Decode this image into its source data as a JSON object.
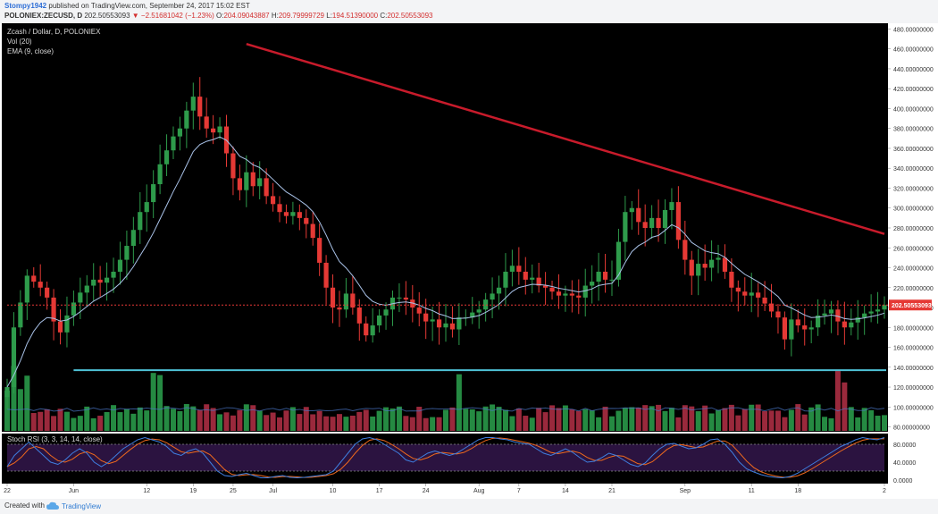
{
  "header": {
    "user": "Stompy1942",
    "published": "published on TradingView.com, September 24, 2017 15:02 EST",
    "symbol": "POLONIEX:ZECUSD, D",
    "last": "202.50553093",
    "change": "−2.51681042 (−1.23%)",
    "o_label": "O:",
    "o_value": "204.09043887",
    "h_label": "H:",
    "h_value": "209.79999729",
    "l_label": "L:",
    "l_value": "194.51390000",
    "c_label": "C:",
    "c_value": "202.50553093"
  },
  "legend": {
    "title": "Zcash / Dollar, D, POLONIEX",
    "vol": "Vol (20)",
    "ema": "EMA (9, close)",
    "stoch": "Stoch RSI (3, 3, 14, 14, close)"
  },
  "footer": {
    "created": "Created with",
    "brand": "TradingView"
  },
  "colors": {
    "background": "#000000",
    "up": "#26a69a",
    "up_candle": "#2e9b4b",
    "down": "#e53935",
    "ema": "#a9c2e8",
    "trendline": "#c81b2b",
    "support": "#4fc3d7",
    "price_line": "#e53935",
    "stoch_k": "#3f7fe0",
    "stoch_d": "#f06a1d",
    "stoch_band": "#3a1a55"
  },
  "chart_data": {
    "type": "candlestick",
    "price_axis": {
      "ticks": [
        "480.00000000",
        "460.00000000",
        "440.00000000",
        "420.00000000",
        "400.00000000",
        "380.00000000",
        "360.00000000",
        "340.00000000",
        "320.00000000",
        "300.00000000",
        "280.00000000",
        "260.00000000",
        "240.00000000",
        "220.00000000",
        "200.00000000",
        "180.00000000",
        "160.00000000",
        "140.00000000",
        "120.00000000",
        "100.00000000",
        "80.00000000"
      ],
      "ylim": [
        76,
        484
      ],
      "last_price_label": "202.50553093",
      "last_price": 202.5
    },
    "x_axis": {
      "ticks": [
        {
          "label": "22",
          "day": 0
        },
        {
          "label": "Jun",
          "day": 10
        },
        {
          "label": "12",
          "day": 21
        },
        {
          "label": "19",
          "day": 28
        },
        {
          "label": "25",
          "day": 34
        },
        {
          "label": "Jul",
          "day": 40
        },
        {
          "label": "10",
          "day": 49
        },
        {
          "label": "17",
          "day": 56
        },
        {
          "label": "24",
          "day": 63
        },
        {
          "label": "Aug",
          "day": 71
        },
        {
          "label": "7",
          "day": 77
        },
        {
          "label": "14",
          "day": 84
        },
        {
          "label": "21",
          "day": 91
        },
        {
          "label": "Sep",
          "day": 102
        },
        {
          "label": "11",
          "day": 112
        },
        {
          "label": "18",
          "day": 119
        },
        {
          "label": "2",
          "day": 133
        }
      ]
    },
    "stoch_axis": {
      "ticks": [
        "80.0000",
        "40.0000",
        "0.0000"
      ],
      "ylim": [
        0,
        100
      ],
      "bands": [
        20,
        80
      ]
    },
    "close_prices": [
      120,
      180,
      205,
      232,
      226,
      220,
      210,
      186,
      175,
      192,
      205,
      215,
      222,
      228,
      225,
      230,
      236,
      248,
      262,
      278,
      296,
      306,
      324,
      344,
      358,
      372,
      380,
      398,
      412,
      392,
      380,
      376,
      382,
      355,
      330,
      318,
      336,
      322,
      330,
      312,
      304,
      296,
      292,
      296,
      290,
      284,
      270,
      245,
      220,
      200,
      198,
      214,
      200,
      184,
      172,
      182,
      192,
      198,
      210,
      210,
      208,
      200,
      194,
      186,
      188,
      180,
      184,
      178,
      190,
      190,
      195,
      198,
      208,
      214,
      220,
      236,
      242,
      236,
      228,
      230,
      222,
      220,
      216,
      212,
      214,
      212,
      210,
      222,
      226,
      236,
      228,
      228,
      266,
      296,
      300,
      286,
      280,
      290,
      280,
      298,
      306,
      268,
      248,
      232,
      244,
      240,
      248,
      250,
      236,
      220,
      216,
      212,
      215,
      210,
      204,
      196,
      190,
      168,
      188,
      182,
      178,
      180,
      192,
      194,
      198,
      186,
      180,
      185,
      190,
      194,
      196,
      198,
      202.5
    ],
    "support_level": 137,
    "trendline": {
      "from": {
        "day": 36,
        "price": 465
      },
      "to": {
        "day": 141,
        "price": 274
      }
    },
    "volume_high_days": [
      0,
      1,
      2,
      3,
      22,
      23,
      68,
      125,
      126
    ],
    "stoch_k": [
      30,
      55,
      70,
      85,
      70,
      55,
      40,
      35,
      45,
      60,
      70,
      60,
      40,
      30,
      40,
      55,
      70,
      80,
      90,
      95,
      90,
      85,
      75,
      60,
      55,
      65,
      70,
      60,
      40,
      20,
      10,
      8,
      12,
      15,
      10,
      5,
      5,
      8,
      10,
      6,
      5,
      6,
      8,
      10,
      12,
      20,
      40,
      60,
      80,
      92,
      95,
      90,
      80,
      70,
      60,
      45,
      40,
      50,
      60,
      65,
      60,
      55,
      60,
      70,
      80,
      90,
      95,
      95,
      92,
      90,
      85,
      82,
      80,
      70,
      60,
      55,
      62,
      70,
      62,
      50,
      40,
      42,
      50,
      60,
      55,
      45,
      35,
      30,
      38,
      55,
      70,
      80,
      82,
      76,
      70,
      72,
      80,
      90,
      92,
      80,
      62,
      40,
      25,
      18,
      12,
      8,
      6,
      5,
      8,
      15,
      25,
      35,
      45,
      55,
      65,
      75,
      82,
      90,
      95,
      92,
      90,
      95
    ]
  }
}
